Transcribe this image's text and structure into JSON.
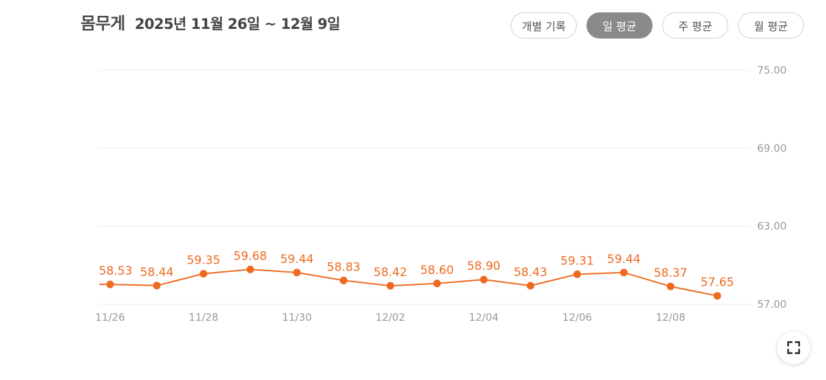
{
  "header": {
    "title": "몸무게",
    "date_range": "2025년 11월 26일 ~ 12월 9일"
  },
  "view_buttons": [
    {
      "label": "개별 기록",
      "active": false
    },
    {
      "label": "일 평균",
      "active": true
    },
    {
      "label": "주 평균",
      "active": false
    },
    {
      "label": "월 평균",
      "active": false
    }
  ],
  "colors": {
    "series": "#ef6a1f",
    "active_button": "#8a8a8a"
  },
  "fullscreen_icon": "expand-icon",
  "chart_data": {
    "type": "line",
    "x": [
      "11/26",
      "11/27",
      "11/28",
      "11/29",
      "11/30",
      "12/01",
      "12/02",
      "12/03",
      "12/04",
      "12/05",
      "12/06",
      "12/07",
      "12/08",
      "12/09"
    ],
    "x_tick_labels": [
      "11/26",
      "11/28",
      "11/30",
      "12/02",
      "12/04",
      "12/06",
      "12/08"
    ],
    "values": [
      58.53,
      58.44,
      59.35,
      59.68,
      59.44,
      58.83,
      58.42,
      58.6,
      58.9,
      58.43,
      59.31,
      59.44,
      58.37,
      57.65
    ],
    "data_labels": [
      "58.53",
      "58.44",
      "59.35",
      "59.68",
      "59.44",
      "58.83",
      "58.42",
      "58.60",
      "58.90",
      "58.43",
      "59.31",
      "59.44",
      "58.37",
      "57.65"
    ],
    "y_ticks": [
      75,
      69,
      63,
      57
    ],
    "y_tick_labels": [
      "75.00",
      "69.00",
      "63.00",
      "57.00"
    ],
    "ylim": [
      57,
      75
    ],
    "y_axis_side": "right",
    "grid": true,
    "title": "",
    "xlabel": "",
    "ylabel": ""
  }
}
